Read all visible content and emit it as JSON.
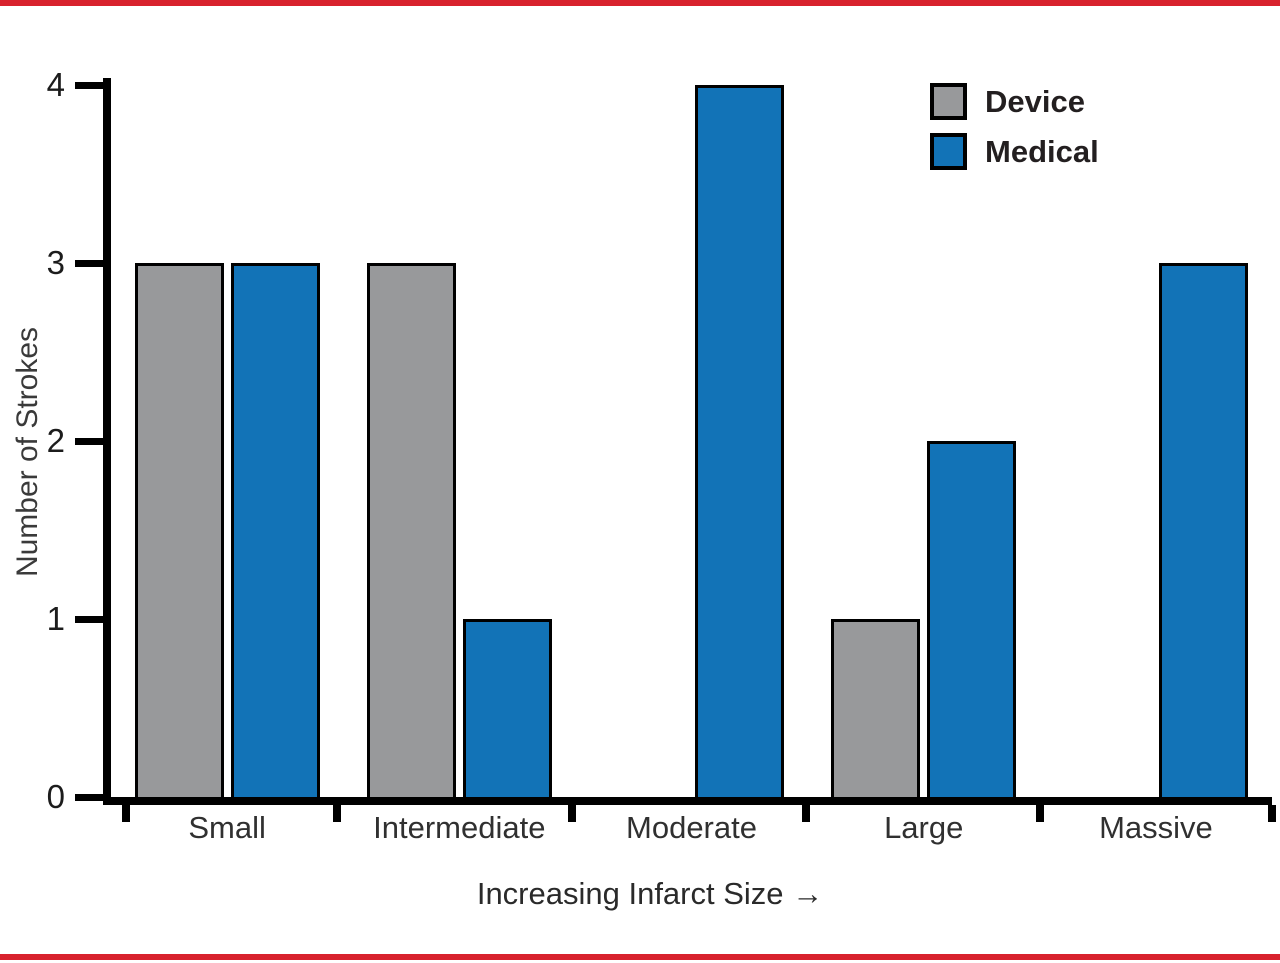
{
  "page": {
    "rule_color": "#d8222d",
    "background": "#ffffff",
    "axis_color": "#000000"
  },
  "chart_data": {
    "type": "bar",
    "title": "",
    "categories": [
      "Small",
      "Intermediate",
      "Moderate",
      "Large",
      "Massive"
    ],
    "series": [
      {
        "name": "Device",
        "color": "#98999b",
        "values": [
          3,
          3,
          0,
          1,
          0
        ]
      },
      {
        "name": "Medical",
        "color": "#1273b7",
        "values": [
          3,
          1,
          4,
          2,
          3
        ]
      }
    ],
    "xlabel": "Increasing Infarct Size →",
    "ylabel": "Number of Strokes",
    "yticks": [
      0,
      1,
      2,
      3,
      4
    ],
    "ylim": [
      0,
      4
    ],
    "grid": false,
    "legend_position": "top-right",
    "bar_border_color": "#000000"
  }
}
